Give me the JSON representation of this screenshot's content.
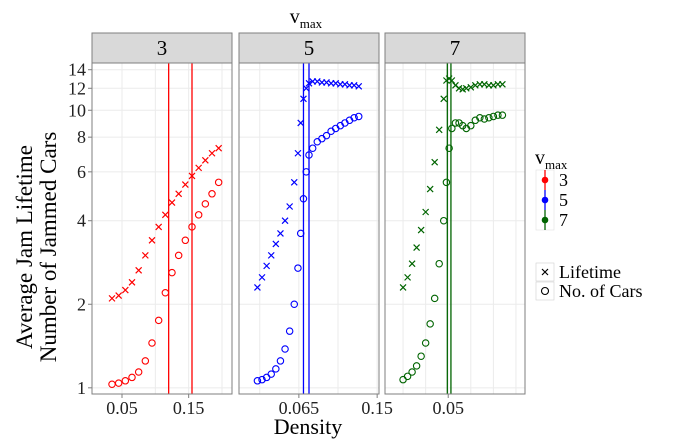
{
  "chart_data": {
    "type": "scatter",
    "title_main": "v",
    "title_sub": "max",
    "xlabel": "Density",
    "ylabel_lines": [
      "Average Jam Lifetime",
      "Number of Jammed Cars"
    ],
    "y_scale": "log",
    "ylim": [
      0.95,
      14.8
    ],
    "y_ticks": [
      1,
      2,
      4,
      6,
      8,
      10,
      12,
      14
    ],
    "y_tick_labels": [
      "1",
      "2",
      "4",
      "6",
      "8",
      "10",
      "12",
      "14"
    ],
    "panel_bg": "#ffffff",
    "strip_bg": "#d9d9d9",
    "grid_color": "#ebebeb",
    "legend": {
      "vmax_title_main": "v",
      "vmax_title_sub": "max",
      "vmax_items": [
        {
          "label": "3",
          "color": "#ff0000"
        },
        {
          "label": "5",
          "color": "#0000ff"
        },
        {
          "label": "7",
          "color": "#006400"
        }
      ],
      "shape_items": [
        {
          "label": "Lifetime",
          "shape": "x"
        },
        {
          "label": "No. of Cars",
          "shape": "circle"
        }
      ]
    },
    "panels": [
      {
        "strip": "3",
        "color": "#ff0000",
        "xlim": [
          0.005,
          0.215
        ],
        "x_ticks": [
          0.05,
          0.15
        ],
        "x_tick_labels": [
          "0.05",
          "0.15"
        ],
        "vlines": [
          0.12,
          0.155
        ],
        "series": [
          {
            "name": "Lifetime",
            "shape": "x",
            "x": [
              0.035,
              0.045,
              0.055,
              0.065,
              0.075,
              0.085,
              0.095,
              0.105,
              0.115,
              0.125,
              0.135,
              0.145,
              0.155,
              0.165,
              0.175,
              0.185,
              0.195
            ],
            "y": [
              2.1,
              2.15,
              2.25,
              2.4,
              2.65,
              3.0,
              3.4,
              3.8,
              4.2,
              4.65,
              5.0,
              5.4,
              5.8,
              6.2,
              6.6,
              7.0,
              7.3
            ]
          },
          {
            "name": "No. of Cars",
            "shape": "circle",
            "x": [
              0.035,
              0.045,
              0.055,
              0.065,
              0.075,
              0.085,
              0.095,
              0.105,
              0.115,
              0.125,
              0.135,
              0.145,
              0.155,
              0.165,
              0.175,
              0.185,
              0.195
            ],
            "y": [
              1.03,
              1.04,
              1.06,
              1.09,
              1.14,
              1.25,
              1.45,
              1.75,
              2.2,
              2.6,
              3.0,
              3.4,
              3.8,
              4.2,
              4.6,
              5.0,
              5.5
            ]
          }
        ]
      },
      {
        "strip": "5",
        "color": "#0000ff",
        "xlim": [
          0.0,
          0.152
        ],
        "x_ticks": [
          0.065,
          0.15
        ],
        "x_tick_labels": [
          "0.065",
          "0.15"
        ],
        "vlines": [
          0.07,
          0.076
        ],
        "series": [
          {
            "name": "Lifetime",
            "shape": "x",
            "x": [
              0.02,
              0.025,
              0.03,
              0.035,
              0.04,
              0.045,
              0.05,
              0.055,
              0.06,
              0.064,
              0.067,
              0.07,
              0.073,
              0.076,
              0.08,
              0.085,
              0.09,
              0.095,
              0.1,
              0.105,
              0.11,
              0.115,
              0.12,
              0.125,
              0.13
            ],
            "y": [
              2.3,
              2.5,
              2.75,
              3.0,
              3.3,
              3.6,
              4.0,
              4.5,
              5.5,
              7.0,
              9.0,
              11.0,
              12.0,
              12.5,
              12.7,
              12.7,
              12.6,
              12.6,
              12.5,
              12.5,
              12.4,
              12.4,
              12.3,
              12.3,
              12.2
            ]
          },
          {
            "name": "No. of Cars",
            "shape": "circle",
            "x": [
              0.02,
              0.025,
              0.03,
              0.035,
              0.04,
              0.045,
              0.05,
              0.055,
              0.06,
              0.064,
              0.067,
              0.07,
              0.073,
              0.076,
              0.08,
              0.085,
              0.09,
              0.095,
              0.1,
              0.105,
              0.11,
              0.115,
              0.12,
              0.125,
              0.13
            ],
            "y": [
              1.06,
              1.07,
              1.09,
              1.12,
              1.17,
              1.25,
              1.38,
              1.6,
              2.0,
              2.7,
              3.6,
              4.8,
              6.0,
              6.9,
              7.3,
              7.7,
              7.9,
              8.1,
              8.4,
              8.6,
              8.8,
              9.0,
              9.2,
              9.4,
              9.5
            ]
          }
        ]
      },
      {
        "strip": "7",
        "color": "#006400",
        "xlim": [
          -0.02,
          0.135
        ],
        "x_ticks": [
          0.05
        ],
        "x_tick_labels": [
          "0.05"
        ],
        "vlines": [
          0.049,
          0.053
        ],
        "series": [
          {
            "name": "Lifetime",
            "shape": "x",
            "x": [
              0.0,
              0.005,
              0.01,
              0.015,
              0.02,
              0.025,
              0.03,
              0.035,
              0.04,
              0.045,
              0.048,
              0.051,
              0.054,
              0.058,
              0.062,
              0.066,
              0.07,
              0.075,
              0.08,
              0.085,
              0.09,
              0.095,
              0.1,
              0.105,
              0.11
            ],
            "y": [
              2.3,
              2.5,
              2.8,
              3.2,
              3.7,
              4.3,
              5.2,
              6.5,
              8.5,
              11.0,
              12.8,
              13.0,
              12.8,
              12.3,
              12.0,
              11.9,
              12.0,
              12.1,
              12.3,
              12.4,
              12.4,
              12.3,
              12.3,
              12.4,
              12.4
            ]
          },
          {
            "name": "No. of Cars",
            "shape": "circle",
            "x": [
              0.0,
              0.005,
              0.01,
              0.015,
              0.02,
              0.025,
              0.03,
              0.035,
              0.04,
              0.045,
              0.048,
              0.051,
              0.054,
              0.058,
              0.062,
              0.066,
              0.07,
              0.075,
              0.08,
              0.085,
              0.09,
              0.095,
              0.1,
              0.105,
              0.11
            ],
            "y": [
              1.07,
              1.1,
              1.14,
              1.2,
              1.3,
              1.45,
              1.7,
              2.1,
              2.8,
              4.0,
              5.5,
              7.3,
              8.6,
              9.0,
              9.0,
              8.8,
              8.6,
              8.8,
              9.2,
              9.4,
              9.3,
              9.4,
              9.5,
              9.6,
              9.6
            ]
          }
        ]
      }
    ]
  }
}
